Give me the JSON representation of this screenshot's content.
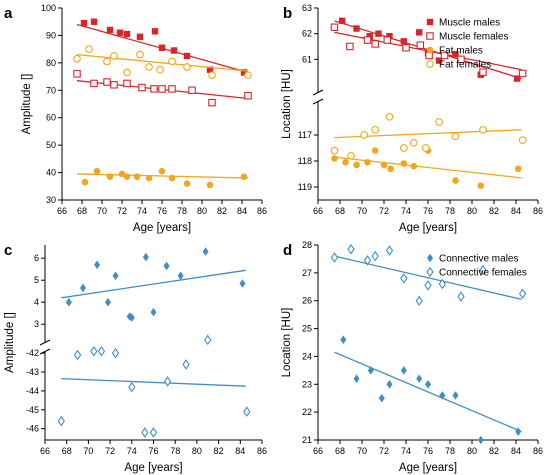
{
  "colors": {
    "muscle": "#d8242b",
    "fat": "#f2a51d",
    "connective": "#3f8fc4"
  },
  "chart_data": [
    {
      "panel": "a",
      "type": "scatter",
      "xlabel": "Age [years]",
      "ylabel": "Amplitude []",
      "xlim": [
        66,
        86
      ],
      "ylim": [
        30,
        100
      ],
      "x_ticks": [
        "66",
        "68",
        "70",
        "72",
        "74",
        "76",
        "78",
        "80",
        "82",
        "84",
        "86"
      ],
      "y_ticks": [
        "30",
        "40",
        "50",
        "60",
        "70",
        "80",
        "90",
        "100"
      ],
      "series": [
        {
          "name": "Muscle males",
          "color": "muscle",
          "marker": "square-filled",
          "points": [
            [
              68.2,
              94.5
            ],
            [
              69.2,
              95
            ],
            [
              70.8,
              92
            ],
            [
              71.8,
              91
            ],
            [
              72.5,
              90.5
            ],
            [
              73.8,
              89.5
            ],
            [
              75.3,
              91.5
            ],
            [
              76,
              85.5
            ],
            [
              77.2,
              84.5
            ],
            [
              78.5,
              82.5
            ],
            [
              80.8,
              77.5
            ],
            [
              84.2,
              76.5
            ]
          ],
          "fit": [
            [
              67.5,
              94
            ],
            [
              84.6,
              76.5
            ]
          ]
        },
        {
          "name": "Muscle females",
          "color": "muscle",
          "marker": "square-open",
          "points": [
            [
              67.5,
              76
            ],
            [
              69.2,
              72.5
            ],
            [
              70.5,
              73
            ],
            [
              71.2,
              72
            ],
            [
              72.5,
              72.5
            ],
            [
              74,
              71
            ],
            [
              75.2,
              70.5
            ],
            [
              76,
              70.5
            ],
            [
              77,
              70.5
            ],
            [
              79,
              70
            ],
            [
              81,
              65.5
            ],
            [
              84.6,
              68
            ]
          ],
          "fit": [
            [
              67.5,
              73.5
            ],
            [
              84.6,
              67
            ]
          ]
        },
        {
          "name": "Fat males",
          "color": "fat",
          "marker": "circle-filled",
          "points": [
            [
              68.3,
              36.5
            ],
            [
              69.5,
              40.5
            ],
            [
              70.8,
              38.5
            ],
            [
              72,
              39.5
            ],
            [
              72.5,
              38.5
            ],
            [
              73.5,
              38.5
            ],
            [
              74.7,
              38
            ],
            [
              76,
              40.5
            ],
            [
              77,
              38
            ],
            [
              78.5,
              36
            ],
            [
              80.8,
              35.5
            ],
            [
              84.2,
              38.5
            ]
          ],
          "fit": [
            [
              67.5,
              39.5
            ],
            [
              84.6,
              38
            ]
          ]
        },
        {
          "name": "Fat females",
          "color": "fat",
          "marker": "circle-open",
          "points": [
            [
              67.5,
              81.5
            ],
            [
              68.7,
              85
            ],
            [
              70.5,
              80.5
            ],
            [
              71.2,
              82.5
            ],
            [
              72.5,
              76.5
            ],
            [
              73.8,
              83
            ],
            [
              74.7,
              78.5
            ],
            [
              75.8,
              77.5
            ],
            [
              77,
              80.5
            ],
            [
              78.5,
              78.5
            ],
            [
              81,
              75.5
            ],
            [
              84.6,
              75.5
            ]
          ],
          "fit": [
            [
              67.5,
              83
            ],
            [
              84.6,
              77
            ]
          ]
        }
      ]
    },
    {
      "panel": "b",
      "type": "scatter",
      "xlabel": "Age [years]",
      "ylabel": "Location [HU]",
      "xlim": [
        66,
        86
      ],
      "y_top_ticks": [
        "63",
        "62",
        "61"
      ],
      "y_bottom_ticks": [
        "117",
        "118",
        "119"
      ],
      "legend": [
        "Muscle males",
        "Muscle females",
        "Fat males",
        "Fat females"
      ],
      "legend_position": "top-right",
      "series": [
        {
          "name": "Muscle males",
          "color": "muscle",
          "marker": "square-filled",
          "segment": "top",
          "points": [
            [
              68.2,
              62.5
            ],
            [
              69.5,
              62.2
            ],
            [
              70.7,
              61.9
            ],
            [
              71.5,
              62
            ],
            [
              72.5,
              61.9
            ],
            [
              73.8,
              61.7
            ],
            [
              75.2,
              62.05
            ],
            [
              76,
              61.25
            ],
            [
              77,
              60.95
            ],
            [
              78.5,
              61.2
            ],
            [
              80.8,
              60.4
            ],
            [
              84.1,
              60.25
            ]
          ],
          "fit": [
            [
              67.5,
              62.5
            ],
            [
              84.5,
              60.25
            ]
          ]
        },
        {
          "name": "Muscle females",
          "color": "muscle",
          "marker": "square-open",
          "segment": "top",
          "points": [
            [
              67.5,
              62.25
            ],
            [
              68.9,
              61.5
            ],
            [
              70.5,
              61.75
            ],
            [
              71.2,
              61.6
            ],
            [
              72.3,
              61.75
            ],
            [
              74,
              61.45
            ],
            [
              75.3,
              61.55
            ],
            [
              76.1,
              61.15
            ],
            [
              77.5,
              61.15
            ],
            [
              79,
              61
            ],
            [
              81,
              60.5
            ],
            [
              84.6,
              60.45
            ]
          ],
          "fit": [
            [
              67.5,
              62.05
            ],
            [
              84.5,
              60.6
            ]
          ]
        },
        {
          "name": "Fat males",
          "color": "fat",
          "marker": "circle-filled",
          "segment": "bottom",
          "points": [
            [
              67.5,
              117.9
            ],
            [
              68.5,
              118.05
            ],
            [
              69.5,
              118.15
            ],
            [
              70.5,
              118.05
            ],
            [
              71.2,
              117.6
            ],
            [
              72,
              118.15
            ],
            [
              72.6,
              118.3
            ],
            [
              73.8,
              118.1
            ],
            [
              74.7,
              118.2
            ],
            [
              76,
              117.6
            ],
            [
              78.5,
              118.75
            ],
            [
              80.8,
              118.95
            ],
            [
              84.2,
              118.3
            ]
          ],
          "fit": [
            [
              67.5,
              117.85
            ],
            [
              84.5,
              118.65
            ]
          ]
        },
        {
          "name": "Fat females",
          "color": "fat",
          "marker": "circle-open",
          "segment": "bottom",
          "points": [
            [
              67.5,
              117.6
            ],
            [
              69,
              117.8
            ],
            [
              70.2,
              117
            ],
            [
              71.2,
              116.8
            ],
            [
              72.5,
              116.3
            ],
            [
              73.8,
              117.5
            ],
            [
              74.7,
              117.3
            ],
            [
              75.8,
              117.5
            ],
            [
              77,
              116.5
            ],
            [
              78.5,
              117.05
            ],
            [
              81,
              116.8
            ],
            [
              84.6,
              117.2
            ]
          ],
          "fit": [
            [
              67.5,
              117.1
            ],
            [
              84.5,
              116.8
            ]
          ]
        }
      ]
    },
    {
      "panel": "c",
      "type": "scatter",
      "xlabel": "Age [years]",
      "ylabel": "Amplitude []",
      "xlim": [
        66,
        86
      ],
      "y_top_ticks": [
        "6",
        "5",
        "4",
        "3"
      ],
      "y_bottom_ticks": [
        "-42",
        "-43",
        "-44",
        "-45",
        "-46"
      ],
      "series": [
        {
          "name": "Connective males",
          "color": "connective",
          "marker": "diamond-filled",
          "segment": "top",
          "points": [
            [
              68.2,
              4
            ],
            [
              69.5,
              4.65
            ],
            [
              70.8,
              5.7
            ],
            [
              71.8,
              4
            ],
            [
              72.5,
              5.2
            ],
            [
              73.8,
              3.35
            ],
            [
              74,
              3.3
            ],
            [
              75.3,
              6.05
            ],
            [
              76,
              3.55
            ],
            [
              77.2,
              5.65
            ],
            [
              78.5,
              5.2
            ],
            [
              80.8,
              6.3
            ],
            [
              84.2,
              4.85
            ]
          ],
          "fit": [
            [
              67.5,
              4.2
            ],
            [
              84.5,
              5.45
            ]
          ]
        },
        {
          "name": "Connective females",
          "color": "connective",
          "marker": "diamond-open",
          "segment": "bottom",
          "points": [
            [
              67.5,
              -45.6
            ],
            [
              69,
              -42.1
            ],
            [
              70.5,
              -41.9
            ],
            [
              71.2,
              -41.9
            ],
            [
              72.5,
              -42
            ],
            [
              74,
              -43.8
            ],
            [
              75.2,
              -46.2
            ],
            [
              76,
              -46.2
            ],
            [
              77.3,
              -43.5
            ],
            [
              79,
              -42.6
            ],
            [
              81,
              -41.3
            ],
            [
              84.6,
              -45.1
            ]
          ],
          "fit": [
            [
              67.5,
              -43.35
            ],
            [
              84.5,
              -43.75
            ]
          ]
        }
      ]
    },
    {
      "panel": "d",
      "type": "scatter",
      "xlabel": "Age [years]",
      "ylabel": "Location [HU]",
      "xlim": [
        66,
        86
      ],
      "ylim": [
        21,
        28
      ],
      "y_ticks": [
        "21",
        "22",
        "23",
        "24",
        "25",
        "26",
        "27",
        "28"
      ],
      "legend": [
        "Connective males",
        "Connective females"
      ],
      "legend_position": "top-right",
      "series": [
        {
          "name": "Connective males",
          "color": "connective",
          "marker": "diamond-filled",
          "points": [
            [
              68.3,
              24.6
            ],
            [
              69.5,
              23.2
            ],
            [
              70.8,
              23.5
            ],
            [
              71.8,
              22.5
            ],
            [
              72.5,
              23
            ],
            [
              73.8,
              23.5
            ],
            [
              75.2,
              23.2
            ],
            [
              76,
              23
            ],
            [
              77.3,
              22.6
            ],
            [
              78.5,
              22.6
            ],
            [
              80.8,
              21
            ],
            [
              84.2,
              21.3
            ]
          ],
          "fit": [
            [
              67.5,
              24.15
            ],
            [
              84.5,
              21.3
            ]
          ]
        },
        {
          "name": "Connective females",
          "color": "connective",
          "marker": "diamond-open",
          "points": [
            [
              67.5,
              27.55
            ],
            [
              69,
              27.85
            ],
            [
              70.5,
              27.45
            ],
            [
              71.2,
              27.6
            ],
            [
              72.5,
              27.8
            ],
            [
              73.8,
              26.8
            ],
            [
              75.2,
              26
            ],
            [
              76,
              26.55
            ],
            [
              77.3,
              26.6
            ],
            [
              79,
              26.15
            ],
            [
              81,
              27.1
            ],
            [
              84.6,
              26.25
            ]
          ],
          "fit": [
            [
              67.5,
              27.6
            ],
            [
              84.5,
              26.05
            ]
          ]
        }
      ]
    }
  ]
}
